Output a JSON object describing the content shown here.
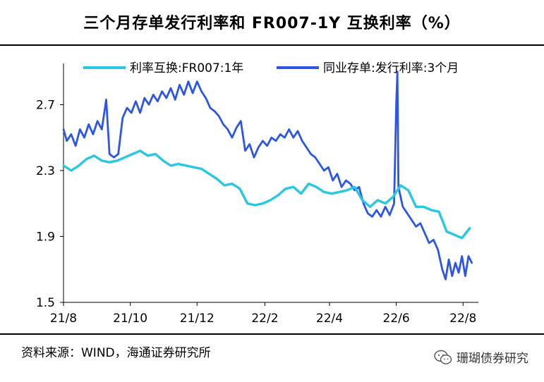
{
  "title": "三个月存单发行利率和 FR007-1Y 互换利率（%）",
  "source": "资料来源：WIND，海通证券研究所",
  "watermark": "珊瑚债券研究",
  "colors": {
    "swap": "#29C7E0",
    "cd": "#2E56E6",
    "axis": "#000000"
  },
  "chart_data": {
    "type": "line",
    "ylim": [
      1.5,
      2.95
    ],
    "yticks": [
      1.5,
      1.9,
      2.3,
      2.7
    ],
    "ytick_labels": [
      "1.5",
      "1.9",
      "2.3",
      "2.7"
    ],
    "xlim": [
      "2021-08-01",
      "2022-08-15"
    ],
    "xticks": [
      "2021-08-01",
      "2021-10-01",
      "2021-12-01",
      "2022-02-01",
      "2022-04-01",
      "2022-06-01",
      "2022-08-01"
    ],
    "xtick_labels": [
      "21/8",
      "21/10",
      "21/12",
      "22/2",
      "22/4",
      "22/6",
      "22/8"
    ],
    "legend": "top",
    "series": [
      {
        "name": "利率互换:FR007:1年",
        "key": "swap",
        "points": [
          [
            "2021-08-01",
            2.33
          ],
          [
            "2021-08-08",
            2.3
          ],
          [
            "2021-08-15",
            2.33
          ],
          [
            "2021-08-22",
            2.37
          ],
          [
            "2021-08-29",
            2.39
          ],
          [
            "2021-09-05",
            2.36
          ],
          [
            "2021-09-12",
            2.35
          ],
          [
            "2021-09-19",
            2.36
          ],
          [
            "2021-09-26",
            2.38
          ],
          [
            "2021-10-03",
            2.4
          ],
          [
            "2021-10-10",
            2.42
          ],
          [
            "2021-10-17",
            2.39
          ],
          [
            "2021-10-24",
            2.4
          ],
          [
            "2021-10-31",
            2.36
          ],
          [
            "2021-11-07",
            2.33
          ],
          [
            "2021-11-14",
            2.34
          ],
          [
            "2021-11-21",
            2.33
          ],
          [
            "2021-11-28",
            2.32
          ],
          [
            "2021-12-05",
            2.31
          ],
          [
            "2021-12-12",
            2.28
          ],
          [
            "2021-12-19",
            2.25
          ],
          [
            "2021-12-26",
            2.21
          ],
          [
            "2022-01-02",
            2.22
          ],
          [
            "2022-01-09",
            2.19
          ],
          [
            "2022-01-16",
            2.1
          ],
          [
            "2022-01-23",
            2.09
          ],
          [
            "2022-01-30",
            2.1
          ],
          [
            "2022-02-06",
            2.12
          ],
          [
            "2022-02-13",
            2.15
          ],
          [
            "2022-02-20",
            2.19
          ],
          [
            "2022-02-27",
            2.2
          ],
          [
            "2022-03-06",
            2.16
          ],
          [
            "2022-03-13",
            2.22
          ],
          [
            "2022-03-20",
            2.2
          ],
          [
            "2022-03-27",
            2.17
          ],
          [
            "2022-04-03",
            2.16
          ],
          [
            "2022-04-10",
            2.17
          ],
          [
            "2022-04-17",
            2.18
          ],
          [
            "2022-04-24",
            2.2
          ],
          [
            "2022-05-01",
            2.12
          ],
          [
            "2022-05-08",
            2.08
          ],
          [
            "2022-05-15",
            2.12
          ],
          [
            "2022-05-22",
            2.1
          ],
          [
            "2022-05-29",
            2.14
          ],
          [
            "2022-06-05",
            2.21
          ],
          [
            "2022-06-12",
            2.18
          ],
          [
            "2022-06-19",
            2.08
          ],
          [
            "2022-06-26",
            2.08
          ],
          [
            "2022-07-03",
            2.06
          ],
          [
            "2022-07-10",
            2.05
          ],
          [
            "2022-07-17",
            1.93
          ],
          [
            "2022-07-24",
            1.91
          ],
          [
            "2022-07-31",
            1.89
          ],
          [
            "2022-08-07",
            1.95
          ]
        ]
      },
      {
        "name": "同业存单:发行利率:3个月",
        "key": "cd",
        "points": [
          [
            "2021-08-01",
            2.55
          ],
          [
            "2021-08-04",
            2.48
          ],
          [
            "2021-08-08",
            2.52
          ],
          [
            "2021-08-12",
            2.45
          ],
          [
            "2021-08-16",
            2.55
          ],
          [
            "2021-08-20",
            2.5
          ],
          [
            "2021-08-24",
            2.58
          ],
          [
            "2021-08-28",
            2.52
          ],
          [
            "2021-09-01",
            2.6
          ],
          [
            "2021-09-05",
            2.55
          ],
          [
            "2021-09-09",
            2.73
          ],
          [
            "2021-09-12",
            2.4
          ],
          [
            "2021-09-16",
            2.38
          ],
          [
            "2021-09-20",
            2.4
          ],
          [
            "2021-09-24",
            2.62
          ],
          [
            "2021-09-28",
            2.68
          ],
          [
            "2021-10-02",
            2.65
          ],
          [
            "2021-10-06",
            2.72
          ],
          [
            "2021-10-10",
            2.65
          ],
          [
            "2021-10-14",
            2.74
          ],
          [
            "2021-10-18",
            2.7
          ],
          [
            "2021-10-22",
            2.76
          ],
          [
            "2021-10-26",
            2.72
          ],
          [
            "2021-10-30",
            2.78
          ],
          [
            "2021-11-03",
            2.74
          ],
          [
            "2021-11-07",
            2.8
          ],
          [
            "2021-11-11",
            2.73
          ],
          [
            "2021-11-15",
            2.82
          ],
          [
            "2021-11-19",
            2.76
          ],
          [
            "2021-11-23",
            2.84
          ],
          [
            "2021-11-27",
            2.77
          ],
          [
            "2021-12-01",
            2.84
          ],
          [
            "2021-12-05",
            2.78
          ],
          [
            "2021-12-09",
            2.74
          ],
          [
            "2021-12-13",
            2.68
          ],
          [
            "2021-12-17",
            2.66
          ],
          [
            "2021-12-21",
            2.63
          ],
          [
            "2021-12-25",
            2.58
          ],
          [
            "2021-12-29",
            2.55
          ],
          [
            "2022-01-02",
            2.5
          ],
          [
            "2022-01-06",
            2.56
          ],
          [
            "2022-01-10",
            2.6
          ],
          [
            "2022-01-14",
            2.42
          ],
          [
            "2022-01-18",
            2.46
          ],
          [
            "2022-01-22",
            2.38
          ],
          [
            "2022-01-26",
            2.44
          ],
          [
            "2022-01-30",
            2.48
          ],
          [
            "2022-02-03",
            2.45
          ],
          [
            "2022-02-07",
            2.5
          ],
          [
            "2022-02-11",
            2.48
          ],
          [
            "2022-02-15",
            2.52
          ],
          [
            "2022-02-19",
            2.5
          ],
          [
            "2022-02-23",
            2.55
          ],
          [
            "2022-02-27",
            2.5
          ],
          [
            "2022-03-03",
            2.54
          ],
          [
            "2022-03-07",
            2.48
          ],
          [
            "2022-03-11",
            2.44
          ],
          [
            "2022-03-15",
            2.4
          ],
          [
            "2022-03-19",
            2.38
          ],
          [
            "2022-03-23",
            2.34
          ],
          [
            "2022-03-27",
            2.3
          ],
          [
            "2022-03-31",
            2.32
          ],
          [
            "2022-04-04",
            2.24
          ],
          [
            "2022-04-08",
            2.28
          ],
          [
            "2022-04-12",
            2.2
          ],
          [
            "2022-04-16",
            2.24
          ],
          [
            "2022-04-20",
            2.22
          ],
          [
            "2022-04-24",
            2.18
          ],
          [
            "2022-04-28",
            2.2
          ],
          [
            "2022-05-02",
            2.1
          ],
          [
            "2022-05-06",
            2.04
          ],
          [
            "2022-05-10",
            2.02
          ],
          [
            "2022-05-14",
            2.06
          ],
          [
            "2022-05-18",
            2.02
          ],
          [
            "2022-05-22",
            2.08
          ],
          [
            "2022-05-26",
            2.03
          ],
          [
            "2022-05-30",
            2.1
          ],
          [
            "2022-06-01",
            2.7
          ],
          [
            "2022-06-02",
            2.9
          ],
          [
            "2022-06-03",
            2.2
          ],
          [
            "2022-06-07",
            2.08
          ],
          [
            "2022-06-11",
            2.04
          ],
          [
            "2022-06-15",
            2.0
          ],
          [
            "2022-06-19",
            1.96
          ],
          [
            "2022-06-23",
            1.98
          ],
          [
            "2022-06-27",
            1.92
          ],
          [
            "2022-07-01",
            1.86
          ],
          [
            "2022-07-05",
            1.88
          ],
          [
            "2022-07-09",
            1.82
          ],
          [
            "2022-07-13",
            1.7
          ],
          [
            "2022-07-16",
            1.64
          ],
          [
            "2022-07-19",
            1.76
          ],
          [
            "2022-07-22",
            1.66
          ],
          [
            "2022-07-25",
            1.74
          ],
          [
            "2022-07-28",
            1.68
          ],
          [
            "2022-07-31",
            1.78
          ],
          [
            "2022-08-03",
            1.66
          ],
          [
            "2022-08-06",
            1.78
          ],
          [
            "2022-08-09",
            1.74
          ]
        ]
      }
    ]
  }
}
